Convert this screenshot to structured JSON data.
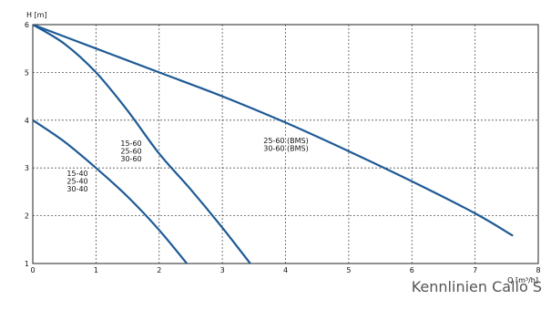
{
  "caption": "Kennlinien Calio S",
  "chart_data": {
    "type": "line",
    "title": "",
    "xlabel": "Q [m³/h]",
    "ylabel": "H [m]",
    "xlim": [
      0,
      8
    ],
    "ylim": [
      1,
      6
    ],
    "xticks": [
      0,
      1,
      2,
      3,
      4,
      5,
      6,
      7,
      8
    ],
    "yticks": [
      1,
      2,
      3,
      4,
      5,
      6
    ],
    "grid": true,
    "line_color": "#1e5a96",
    "series": [
      {
        "points": [
          [
            0,
            4.0
          ],
          [
            0.5,
            3.55
          ],
          [
            1.0,
            3.0
          ],
          [
            1.5,
            2.4
          ],
          [
            2.0,
            1.7
          ],
          [
            2.5,
            0.9
          ]
        ],
        "annotation": [
          "15-40",
          "25-40",
          "30-40"
        ]
      },
      {
        "points": [
          [
            0,
            6.0
          ],
          [
            0.5,
            5.6
          ],
          [
            1.0,
            5.0
          ],
          [
            1.5,
            4.2
          ],
          [
            2.0,
            3.3
          ],
          [
            2.5,
            2.55
          ],
          [
            3.0,
            1.75
          ],
          [
            3.5,
            0.9
          ]
        ],
        "annotation": [
          "15-60",
          "25-60",
          "30-60"
        ]
      },
      {
        "points": [
          [
            0,
            6.0
          ],
          [
            1.0,
            5.5
          ],
          [
            2.0,
            5.0
          ],
          [
            3.0,
            4.5
          ],
          [
            4.0,
            3.95
          ],
          [
            5.0,
            3.35
          ],
          [
            6.0,
            2.72
          ],
          [
            7.0,
            2.05
          ],
          [
            7.6,
            1.58
          ]
        ],
        "annotation": [
          "25-60 (BMS)",
          "30-60 (BMS)"
        ]
      }
    ]
  }
}
